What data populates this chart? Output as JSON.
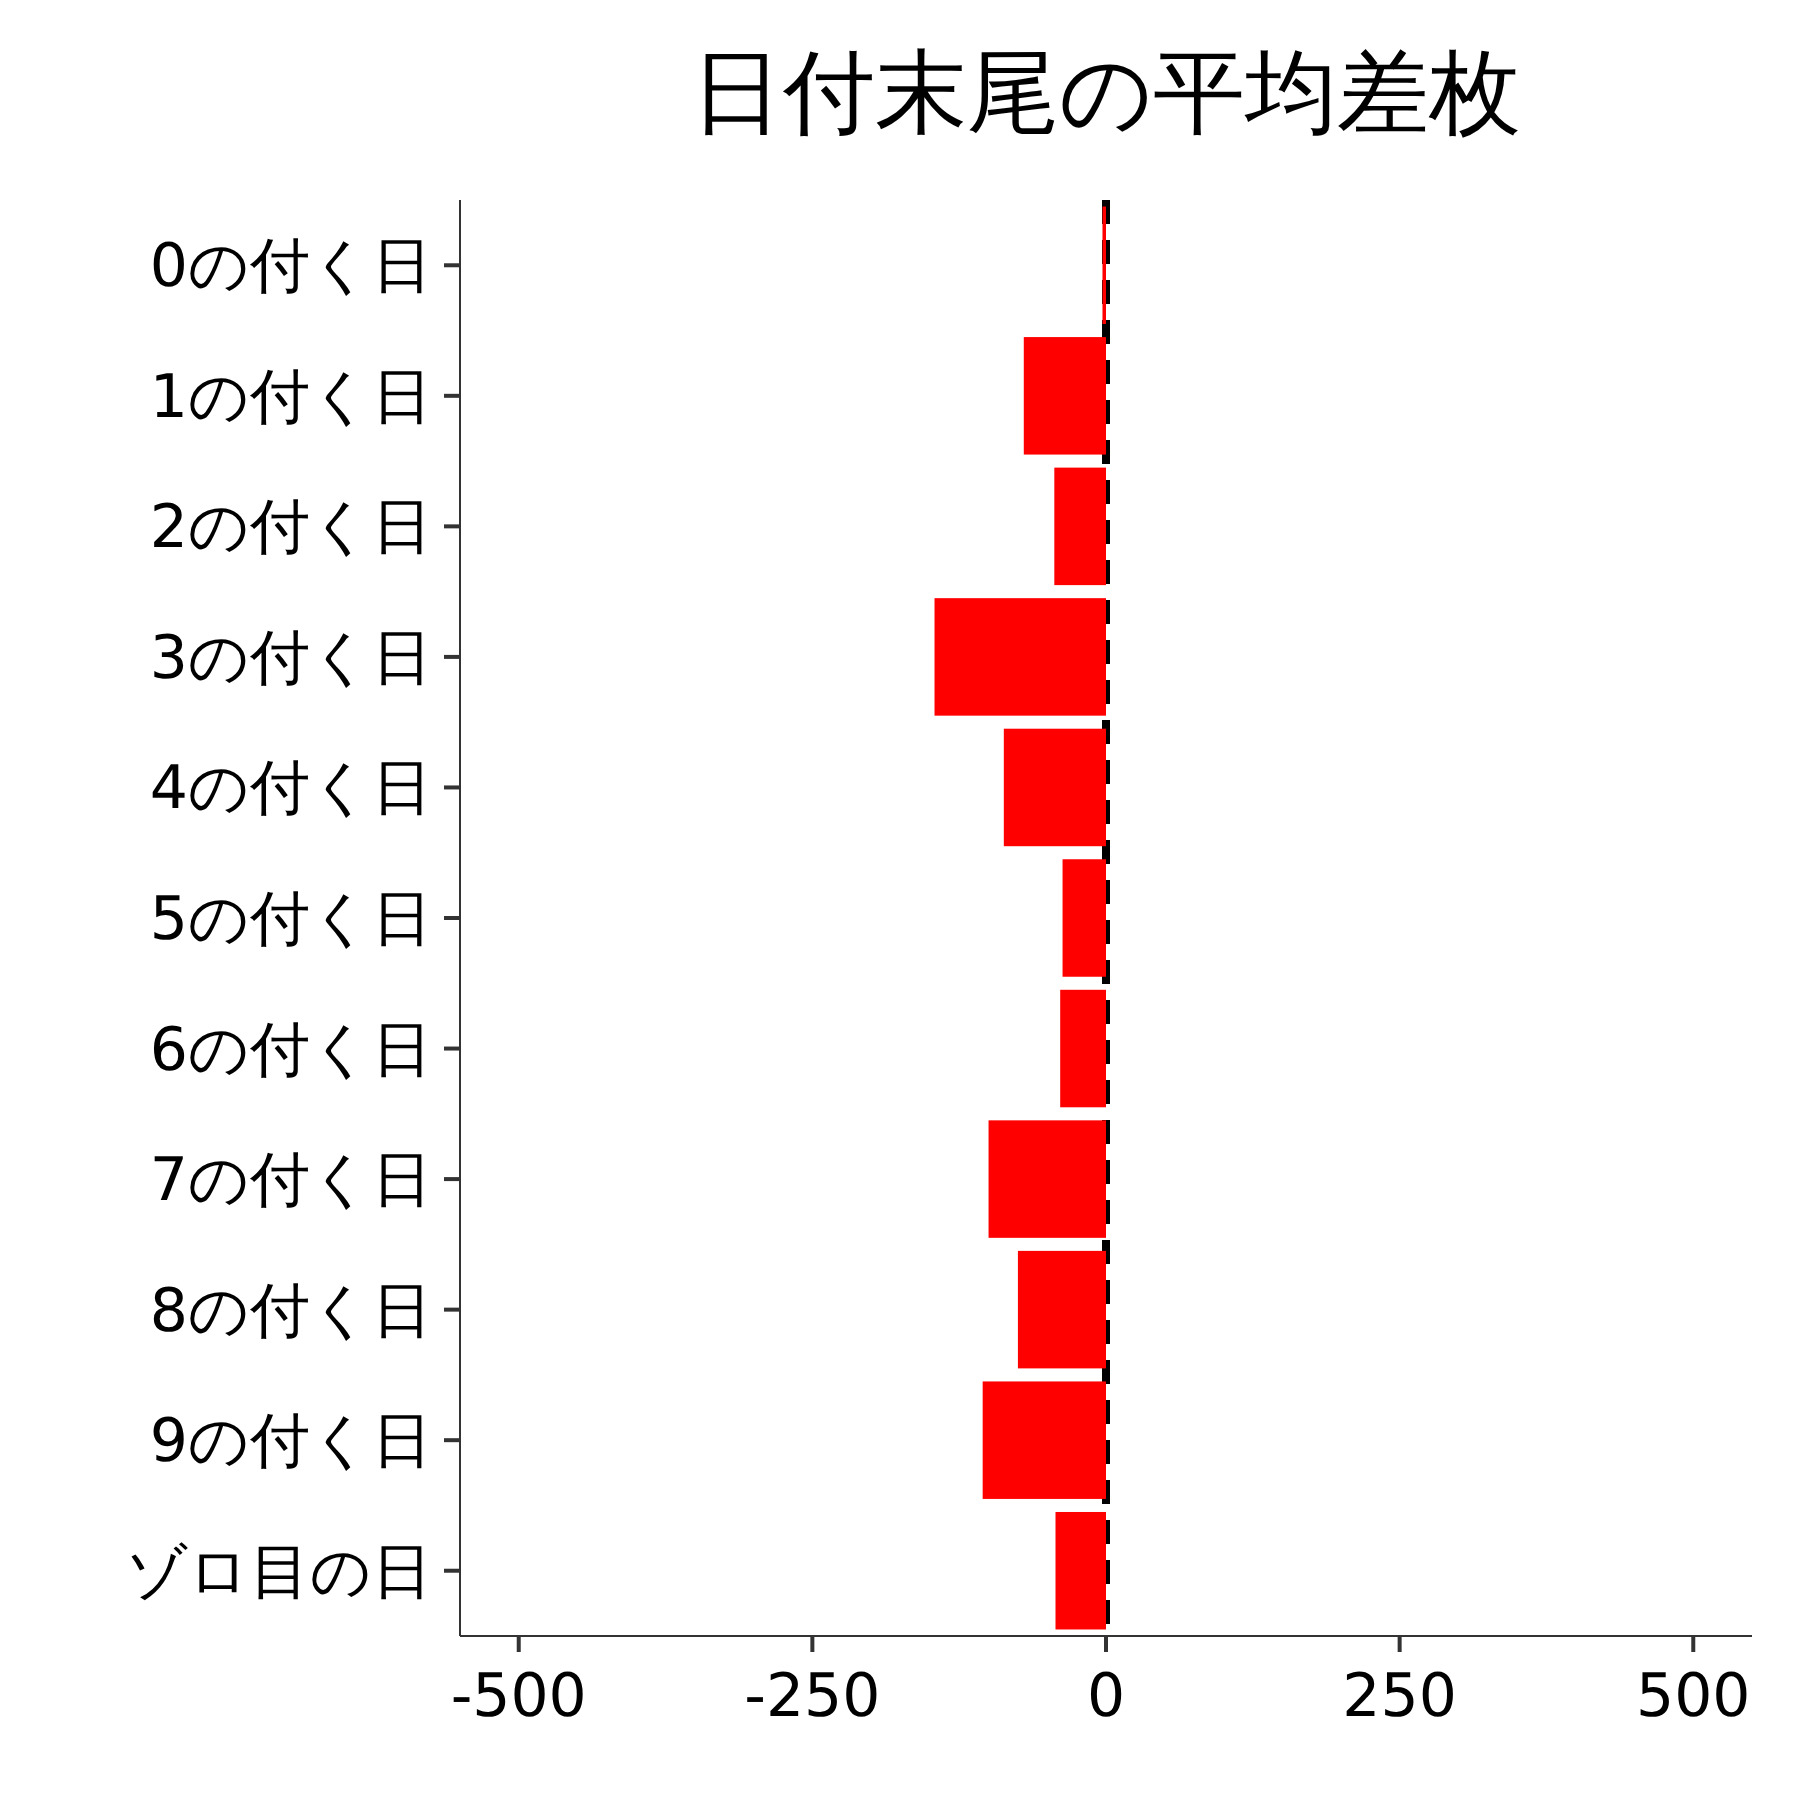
{
  "chart_data": {
    "type": "bar",
    "orientation": "horizontal",
    "title": "日付末尾の平均差枚",
    "categories": [
      "0の付く日",
      "1の付く日",
      "2の付く日",
      "3の付く日",
      "4の付く日",
      "5の付く日",
      "6の付く日",
      "7の付く日",
      "8の付く日",
      "9の付く日",
      "ゾロ目の日"
    ],
    "values": [
      -3,
      -70,
      -44,
      -146,
      -87,
      -37,
      -39,
      -100,
      -75,
      -105,
      -43
    ],
    "color": "#ff0000",
    "xlim": [
      -550,
      550
    ],
    "xticks": [
      -500,
      -250,
      0,
      250,
      500
    ],
    "ref_lines": [
      {
        "axis": "x",
        "value": 0,
        "color": "#000000",
        "line_style": "dashed"
      }
    ],
    "grid": false
  }
}
